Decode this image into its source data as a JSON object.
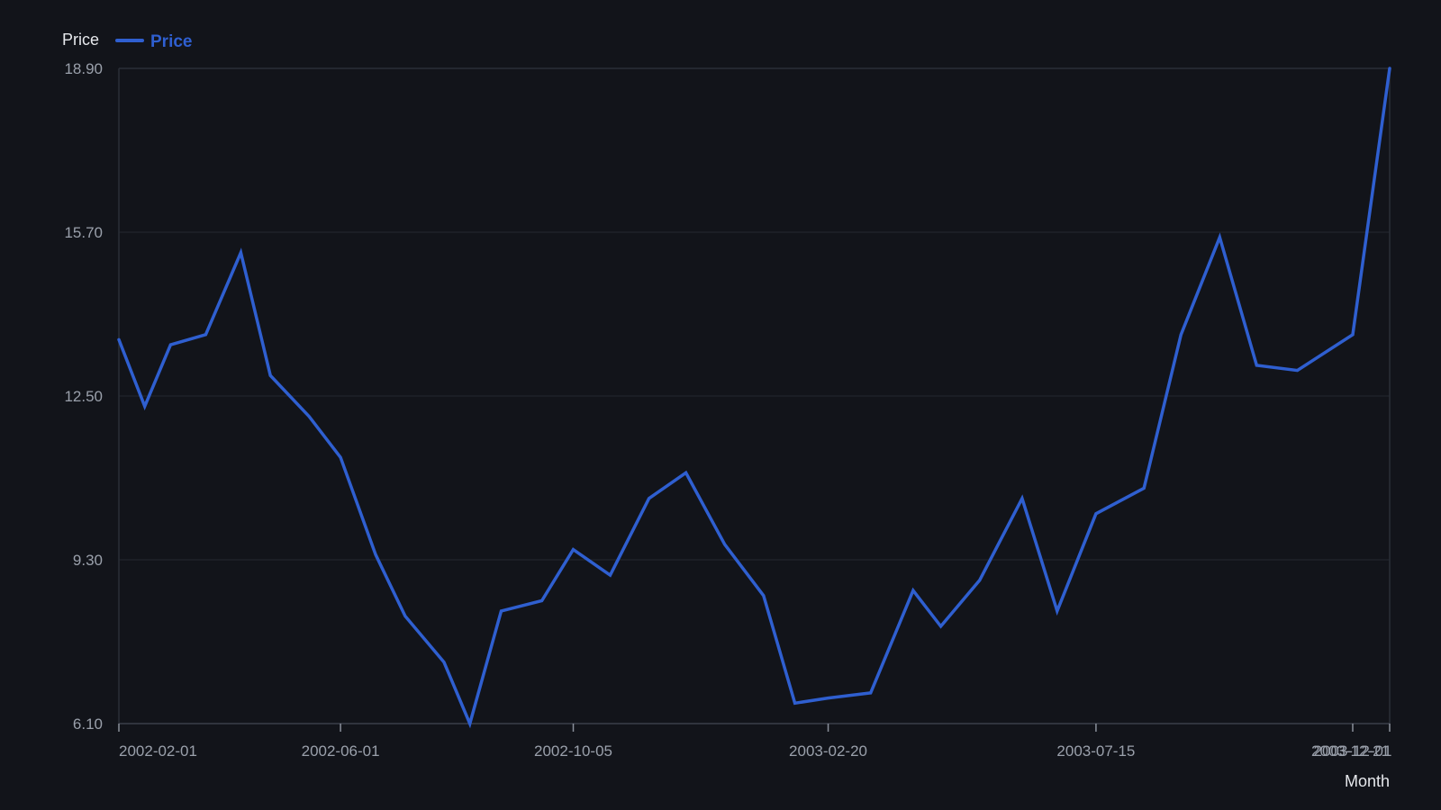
{
  "chart_data": {
    "type": "line",
    "ylabel": "Price",
    "xlabel": "Month",
    "ylim": [
      6.1,
      18.9
    ],
    "yticks": [
      "6.10",
      "9.30",
      "12.50",
      "15.70",
      "18.90"
    ],
    "xrange": [
      "2002-02-01",
      "2003-12-21"
    ],
    "xticks": [
      {
        "date": "2002-02-01",
        "label": "2002-02-01"
      },
      {
        "date": "2002-06-01",
        "label": "2002-06-01"
      },
      {
        "date": "2002-10-05",
        "label": "2002-10-05"
      },
      {
        "date": "2003-02-20",
        "label": "2003-02-20"
      },
      {
        "date": "2003-07-15",
        "label": "2003-07-15"
      },
      {
        "date": "2003-12-01",
        "label": "2003-12-01"
      },
      {
        "date": "2003-12-21",
        "label": "2003-12-21"
      }
    ],
    "grid": true,
    "legend_position": "top-left",
    "series": [
      {
        "name": "Price",
        "color": "#2f5fd0",
        "points": [
          {
            "x": "2002-02-01",
            "y": 13.6
          },
          {
            "x": "2002-02-15",
            "y": 12.3
          },
          {
            "x": "2002-03-01",
            "y": 13.5
          },
          {
            "x": "2002-03-20",
            "y": 13.7
          },
          {
            "x": "2002-04-08",
            "y": 15.3
          },
          {
            "x": "2002-04-24",
            "y": 12.9
          },
          {
            "x": "2002-05-15",
            "y": 12.1
          },
          {
            "x": "2002-06-01",
            "y": 11.3
          },
          {
            "x": "2002-06-20",
            "y": 9.4
          },
          {
            "x": "2002-07-06",
            "y": 8.2
          },
          {
            "x": "2002-07-27",
            "y": 7.3
          },
          {
            "x": "2002-08-10",
            "y": 6.1
          },
          {
            "x": "2002-08-27",
            "y": 8.3
          },
          {
            "x": "2002-09-18",
            "y": 8.5
          },
          {
            "x": "2002-10-05",
            "y": 9.5
          },
          {
            "x": "2002-10-25",
            "y": 9.0
          },
          {
            "x": "2002-11-15",
            "y": 10.5
          },
          {
            "x": "2002-12-05",
            "y": 11.0
          },
          {
            "x": "2002-12-26",
            "y": 9.6
          },
          {
            "x": "2003-01-16",
            "y": 8.6
          },
          {
            "x": "2003-02-02",
            "y": 6.5
          },
          {
            "x": "2003-02-20",
            "y": 6.6
          },
          {
            "x": "2003-03-15",
            "y": 6.7
          },
          {
            "x": "2003-04-07",
            "y": 8.7
          },
          {
            "x": "2003-04-22",
            "y": 8.0
          },
          {
            "x": "2003-05-13",
            "y": 8.9
          },
          {
            "x": "2003-06-05",
            "y": 10.5
          },
          {
            "x": "2003-06-24",
            "y": 8.3
          },
          {
            "x": "2003-07-15",
            "y": 10.2
          },
          {
            "x": "2003-08-10",
            "y": 10.7
          },
          {
            "x": "2003-08-30",
            "y": 13.7
          },
          {
            "x": "2003-09-20",
            "y": 15.6
          },
          {
            "x": "2003-10-10",
            "y": 13.1
          },
          {
            "x": "2003-11-01",
            "y": 13.0
          },
          {
            "x": "2003-12-01",
            "y": 13.7
          },
          {
            "x": "2003-12-21",
            "y": 18.9
          }
        ]
      }
    ]
  }
}
